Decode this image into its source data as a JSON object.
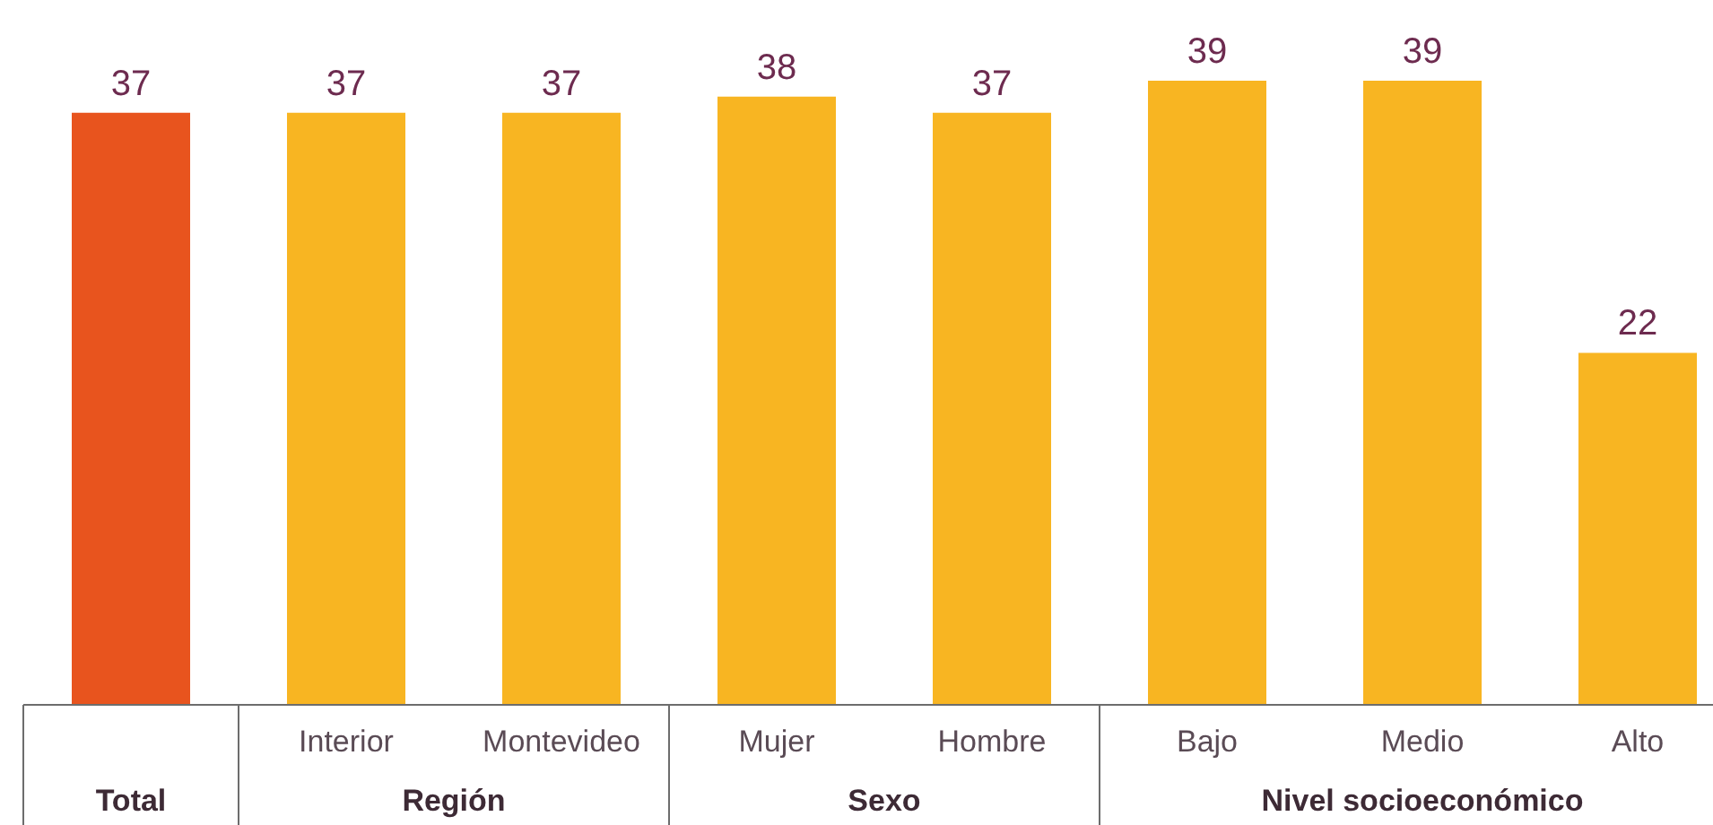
{
  "chart_data": {
    "type": "bar",
    "categories": [
      null,
      "Interior",
      "Montevideo",
      "Mujer",
      "Hombre",
      "Bajo",
      "Medio",
      "Alto"
    ],
    "values": [
      37,
      37,
      37,
      38,
      37,
      39,
      39,
      22
    ],
    "colors": [
      "#e8541e",
      "#f8b522",
      "#f8b522",
      "#f8b522",
      "#f8b522",
      "#f8b522",
      "#f8b522",
      "#f8b522"
    ],
    "data_labels": true,
    "annotations": [
      "Total",
      "Región",
      "Sexo",
      "Nivel socioeconómico"
    ]
  }
}
